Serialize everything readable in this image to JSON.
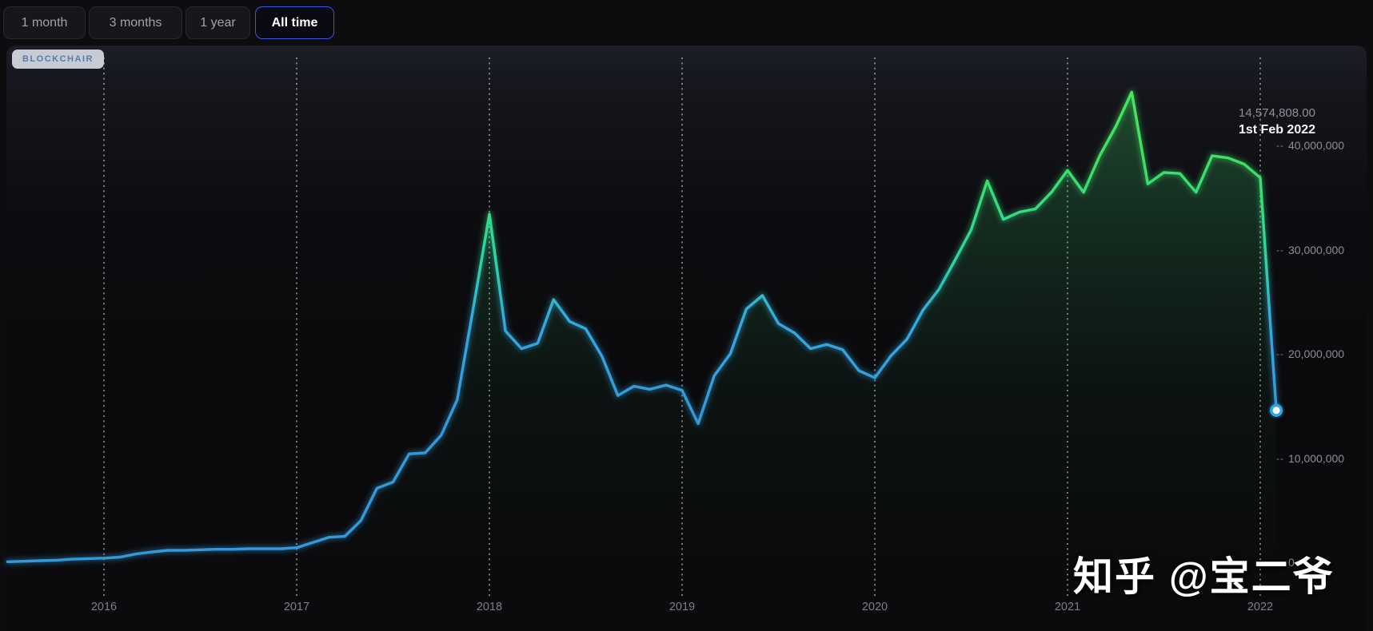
{
  "toolbar": {
    "ranges": [
      {
        "label": "1 month",
        "active": false
      },
      {
        "label": "3 months",
        "active": false
      },
      {
        "label": "1 year",
        "active": false
      },
      {
        "label": "All time",
        "active": true
      }
    ]
  },
  "brand_badge": {
    "label": "BLOCKCHAIR"
  },
  "tooltip": {
    "value": "14,574,808.00",
    "date": "1st Feb 2022"
  },
  "watermark": {
    "text": "知乎 @宝二爷"
  },
  "chart_data": {
    "type": "area",
    "title": "",
    "xlabel": "",
    "ylabel": "",
    "ylim": [
      0,
      46000000
    ],
    "grid": "vertical-dotted-year-lines",
    "legend": "none",
    "y_tick_dash": "--",
    "y_ticks": [
      {
        "label": "40,000,000",
        "value": 40000000
      },
      {
        "label": "30,000,000",
        "value": 30000000
      },
      {
        "label": "20,000,000",
        "value": 20000000
      },
      {
        "label": "10,000,000",
        "value": 10000000
      },
      {
        "label": "0",
        "value": 0
      }
    ],
    "x_ticks": [
      {
        "label": "2016",
        "year": 2016
      },
      {
        "label": "2017",
        "year": 2017
      },
      {
        "label": "2018",
        "year": 2018
      },
      {
        "label": "2019",
        "year": 2019
      },
      {
        "label": "2020",
        "year": 2020
      },
      {
        "label": "2021",
        "year": 2021
      },
      {
        "label": "2022",
        "year": 2022
      }
    ],
    "series": [
      {
        "name": "monthly value",
        "x_start": "2015-07",
        "x_interval": "1 month",
        "values": [
          50000,
          100000,
          150000,
          200000,
          300000,
          350000,
          400000,
          500000,
          800000,
          1000000,
          1150000,
          1150000,
          1200000,
          1250000,
          1250000,
          1300000,
          1300000,
          1300000,
          1400000,
          1900000,
          2400000,
          2500000,
          4000000,
          7100000,
          7700000,
          10400000,
          10500000,
          12200000,
          15600000,
          24400000,
          33400000,
          22200000,
          20500000,
          21000000,
          25200000,
          23100000,
          22400000,
          19800000,
          16000000,
          16900000,
          16600000,
          17000000,
          16500000,
          13300000,
          17900000,
          20000000,
          24300000,
          25600000,
          22900000,
          22000000,
          20500000,
          20900000,
          20400000,
          18400000,
          17700000,
          19800000,
          21400000,
          24200000,
          26200000,
          29000000,
          31900000,
          36600000,
          32900000,
          33600000,
          33900000,
          35500000,
          37600000,
          35500000,
          39000000,
          41800000,
          45100000,
          36300000,
          37400000,
          37300000,
          35500000,
          39000000,
          38800000,
          38200000,
          36900000,
          14574808
        ]
      }
    ],
    "last_point": {
      "date": "2022-02-01",
      "value": 14574808.0
    },
    "colors": {
      "line_blue": "#3399da",
      "line_teal": "#2dd3a8",
      "line_green": "#49e85f",
      "fill_green": "#3edc62",
      "dot_core": "#ffffff",
      "dot_ring": "#2ea6e8",
      "active_button_border": "#3d56dd"
    }
  }
}
